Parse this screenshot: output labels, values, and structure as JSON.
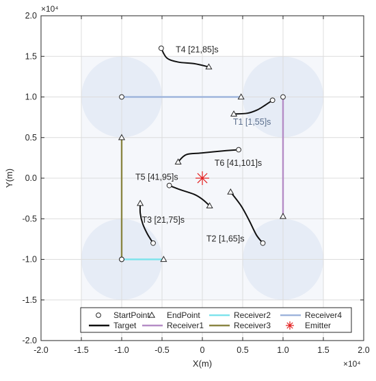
{
  "chart_data": {
    "type": "line",
    "xlabel": "X(m)",
    "ylabel": "Y(m)",
    "x_exponent": "×10⁴",
    "y_exponent": "×10⁴",
    "xlim": [
      -2.0,
      2.0
    ],
    "ylim": [
      -2.0,
      2.0
    ],
    "x_ticks": [
      "-2.0",
      "-1.5",
      "-1.0",
      "-0.5",
      "0",
      "0.5",
      "1.0",
      "1.5",
      "2.0"
    ],
    "y_ticks": [
      "-2.0",
      "-1.5",
      "-1.0",
      "-0.5",
      "0.0",
      "0.5",
      "1.0",
      "1.5",
      "2.0"
    ],
    "grid": true,
    "legend_position": "bottom",
    "coverage_circles": [
      {
        "cx": -1.0,
        "cy": 1.0,
        "r": 0.5
      },
      {
        "cx": 1.0,
        "cy": 1.0,
        "r": 0.5
      },
      {
        "cx": -1.0,
        "cy": -1.0,
        "r": 0.5
      },
      {
        "cx": 1.0,
        "cy": -1.0,
        "r": 0.5
      }
    ],
    "coverage_color": "#e1e8f4",
    "receivers": [
      {
        "name": "Receiver1",
        "color": "#b58cc6",
        "start": [
          1.0,
          1.0
        ],
        "end": [
          1.0,
          -0.47
        ]
      },
      {
        "name": "Receiver2",
        "color": "#7fe3ec",
        "start": [
          -1.0,
          -1.0
        ],
        "end": [
          -0.48,
          -1.0
        ]
      },
      {
        "name": "Receiver3",
        "color": "#8a8643",
        "start": [
          -1.0,
          -1.0
        ],
        "end": [
          -1.0,
          0.5
        ]
      },
      {
        "name": "Receiver4",
        "color": "#9fb5dc",
        "start": [
          -1.0,
          1.0
        ],
        "end": [
          0.48,
          1.0
        ]
      }
    ],
    "targets": [
      {
        "label": "T1 [1,55]s",
        "label_pos": [
          0.38,
          0.66
        ],
        "label_color": "#5a6e8c",
        "points": [
          [
            0.87,
            0.96
          ],
          [
            0.78,
            0.9
          ],
          [
            0.68,
            0.84
          ],
          [
            0.56,
            0.8
          ],
          [
            0.39,
            0.79
          ]
        ]
      },
      {
        "label": "T2 [1,65]s",
        "label_pos": [
          0.05,
          -0.78
        ],
        "label_color": "#262626",
        "points": [
          [
            0.75,
            -0.8
          ],
          [
            0.67,
            -0.7
          ],
          [
            0.58,
            -0.52
          ],
          [
            0.48,
            -0.34
          ],
          [
            0.35,
            -0.17
          ]
        ]
      },
      {
        "label": "T3 [21,75]s",
        "label_pos": [
          -0.75,
          -0.55
        ],
        "label_color": "#262626",
        "points": [
          [
            -0.61,
            -0.8
          ],
          [
            -0.68,
            -0.69
          ],
          [
            -0.74,
            -0.56
          ],
          [
            -0.77,
            -0.43
          ],
          [
            -0.77,
            -0.31
          ]
        ]
      },
      {
        "label": "T4 [21,85]s",
        "label_pos": [
          -0.33,
          1.55
        ],
        "label_color": "#262626",
        "points": [
          [
            -0.51,
            1.6
          ],
          [
            -0.44,
            1.48
          ],
          [
            -0.3,
            1.43
          ],
          [
            -0.1,
            1.41
          ],
          [
            0.08,
            1.37
          ]
        ]
      },
      {
        "label": "T5 [41,95]s",
        "label_pos": [
          -0.83,
          -0.02
        ],
        "label_color": "#262626",
        "points": [
          [
            -0.41,
            -0.09
          ],
          [
            -0.28,
            -0.14
          ],
          [
            -0.1,
            -0.2
          ],
          [
            0.0,
            -0.26
          ],
          [
            0.09,
            -0.34
          ]
        ]
      },
      {
        "label": "T6 [41,101]s",
        "label_pos": [
          0.15,
          0.15
        ],
        "label_color": "#262626",
        "points": [
          [
            0.45,
            0.35
          ],
          [
            0.3,
            0.34
          ],
          [
            -0.01,
            0.31
          ],
          [
            -0.2,
            0.29
          ],
          [
            -0.3,
            0.2
          ]
        ]
      }
    ],
    "emitter": {
      "name": "Emitter",
      "x": 0.0,
      "y": 0.0,
      "color": "#e21c1c"
    },
    "legend": [
      {
        "name": "StartPoint",
        "kind": "circle"
      },
      {
        "name": "EndPoint",
        "kind": "triangle"
      },
      {
        "name": "Receiver2",
        "kind": "line",
        "color": "#7fe3ec"
      },
      {
        "name": "Receiver4",
        "kind": "line",
        "color": "#9fb5dc"
      },
      {
        "name": "Target",
        "kind": "line",
        "color": "#111111"
      },
      {
        "name": "Receiver1",
        "kind": "line",
        "color": "#b58cc6"
      },
      {
        "name": "Receiver3",
        "kind": "line",
        "color": "#8a8643"
      },
      {
        "name": "Emitter",
        "kind": "star",
        "color": "#e21c1c"
      }
    ]
  }
}
